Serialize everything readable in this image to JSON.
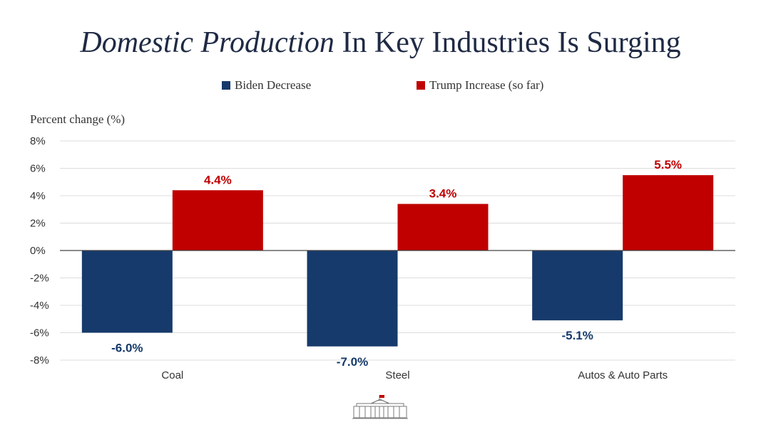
{
  "title": {
    "italic_part": "Domestic Production",
    "rest": "In Key Industries Is Surging"
  },
  "legend": [
    {
      "label": "Biden Decrease",
      "color": "#163a6b"
    },
    {
      "label": "Trump Increase (so far)",
      "color": "#c00000"
    }
  ],
  "chart_data": {
    "type": "bar",
    "title": "Domestic Production In Key Industries Is Surging",
    "ylabel": "Percent change (%)",
    "xlabel": "",
    "categories": [
      "Coal",
      "Steel",
      "Autos & Auto Parts"
    ],
    "series": [
      {
        "name": "Biden Decrease",
        "values": [
          -6.0,
          -7.0,
          -5.1
        ],
        "labels": [
          "-6.0%",
          "-7.0%",
          "-5.1%"
        ],
        "color": "#163a6b"
      },
      {
        "name": "Trump Increase (so far)",
        "values": [
          4.4,
          3.4,
          5.5
        ],
        "labels": [
          "4.4%",
          "3.4%",
          "5.5%"
        ],
        "color": "#c00000"
      }
    ],
    "ylim": [
      -8,
      8
    ],
    "yticks": [
      8,
      6,
      4,
      2,
      0,
      -2,
      -4,
      -6,
      -8
    ],
    "ytick_labels": [
      "8%",
      "6%",
      "4%",
      "2%",
      "0%",
      "-2%",
      "-4%",
      "-6%",
      "-8%"
    ],
    "grid": true,
    "legend_position": "top"
  },
  "footer": {
    "logo": "white-house-icon"
  }
}
